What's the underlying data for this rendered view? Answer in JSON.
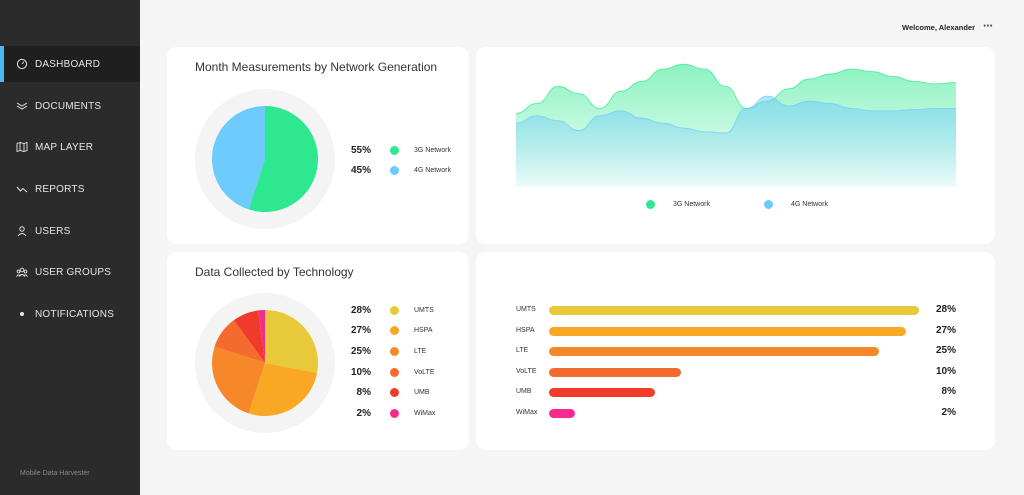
{
  "app": {
    "name": "Mobile Data Harvester"
  },
  "header": {
    "welcome": "Welcome, Alexander",
    "menu_icon": "⋯"
  },
  "sidebar": {
    "items": [
      {
        "label": "DASHBOARD",
        "icon": "gauge-icon",
        "active": true
      },
      {
        "label": "DOCUMENTS",
        "icon": "documents-icon",
        "active": false
      },
      {
        "label": "MAP LAYER",
        "icon": "map-icon",
        "active": false
      },
      {
        "label": "REPORTS",
        "icon": "trend-icon",
        "active": false
      },
      {
        "label": "USERS",
        "icon": "user-icon",
        "active": false
      },
      {
        "label": "USER GROUPS",
        "icon": "users-icon",
        "active": false
      },
      {
        "label": "NOTIFICATIONS",
        "icon": "dot-icon",
        "active": false
      }
    ]
  },
  "network_card": {
    "title": "Month Measurements by Network Generation",
    "legend": [
      {
        "pct": "55%",
        "name": "3G Network",
        "color": "#2de88e"
      },
      {
        "pct": "45%",
        "name": "4G Network",
        "color": "#6ccbfb"
      }
    ]
  },
  "area_card": {
    "legend": [
      {
        "name": "3G Network",
        "color": "#2de88e"
      },
      {
        "name": "4G Network",
        "color": "#6ccbfb"
      }
    ]
  },
  "tech_card": {
    "title": "Data Collected by Technology",
    "legend": [
      {
        "pct": "28%",
        "name": "UMTS",
        "color": "#e8c93a"
      },
      {
        "pct": "27%",
        "name": "HSPA",
        "color": "#f9a825"
      },
      {
        "pct": "25%",
        "name": "LTE",
        "color": "#f7882a"
      },
      {
        "pct": "10%",
        "name": "VoLTE",
        "color": "#f46b2d"
      },
      {
        "pct": "8%",
        "name": "UMB",
        "color": "#f03b2a"
      },
      {
        "pct": "2%",
        "name": "WiMax",
        "color": "#f72b8f"
      }
    ]
  },
  "bars_card": {
    "rows": [
      {
        "label": "UMTS",
        "value": "28%"
      },
      {
        "label": "HSPA",
        "value": "27%"
      },
      {
        "label": "LTE",
        "value": "25%"
      },
      {
        "label": "VoLTE",
        "value": "10%"
      },
      {
        "label": "UMB",
        "value": "8%"
      },
      {
        "label": "WiMax",
        "value": "2%"
      }
    ]
  },
  "chart_data": [
    {
      "type": "pie",
      "title": "Month Measurements by Network Generation",
      "categories": [
        "3G Network",
        "4G Network"
      ],
      "values": [
        55,
        45
      ],
      "colors": [
        "#2de88e",
        "#6ccbfb"
      ]
    },
    {
      "type": "area",
      "title": "",
      "x": [
        0,
        1,
        2,
        3,
        4,
        5,
        6,
        7,
        8,
        9,
        10,
        11,
        12,
        13,
        14,
        15,
        16,
        17,
        18,
        19,
        20,
        21
      ],
      "series": [
        {
          "name": "3G Network",
          "color": "#2de88e",
          "values": [
            60,
            68,
            82,
            76,
            64,
            78,
            86,
            96,
            100,
            96,
            82,
            64,
            70,
            80,
            88,
            92,
            96,
            94,
            90,
            86,
            84,
            85
          ]
        },
        {
          "name": "4G Network",
          "color": "#6ccbfb",
          "values": [
            52,
            58,
            54,
            46,
            58,
            62,
            56,
            52,
            48,
            45,
            44,
            64,
            74,
            66,
            70,
            68,
            64,
            62,
            62,
            63,
            64,
            64
          ]
        }
      ],
      "ylim": [
        0,
        110
      ],
      "grid": false,
      "legend": "bottom"
    },
    {
      "type": "pie",
      "title": "Data Collected by Technology",
      "categories": [
        "UMTS",
        "HSPA",
        "LTE",
        "VoLTE",
        "UMB",
        "WiMax"
      ],
      "values": [
        28,
        27,
        25,
        10,
        8,
        2
      ],
      "colors": [
        "#e8c93a",
        "#f9a825",
        "#f7882a",
        "#f46b2d",
        "#f03b2a",
        "#f72b8f"
      ]
    },
    {
      "type": "bar",
      "orientation": "horizontal",
      "title": "",
      "categories": [
        "UMTS",
        "HSPA",
        "LTE",
        "VoLTE",
        "UMB",
        "WiMax"
      ],
      "values": [
        28,
        27,
        25,
        10,
        8,
        2
      ],
      "colors": [
        "#e8c93a",
        "#f9a825",
        "#f7882a",
        "#f46b2d",
        "#f03b2a",
        "#f72b8f"
      ],
      "xlim": [
        0,
        28
      ]
    }
  ]
}
